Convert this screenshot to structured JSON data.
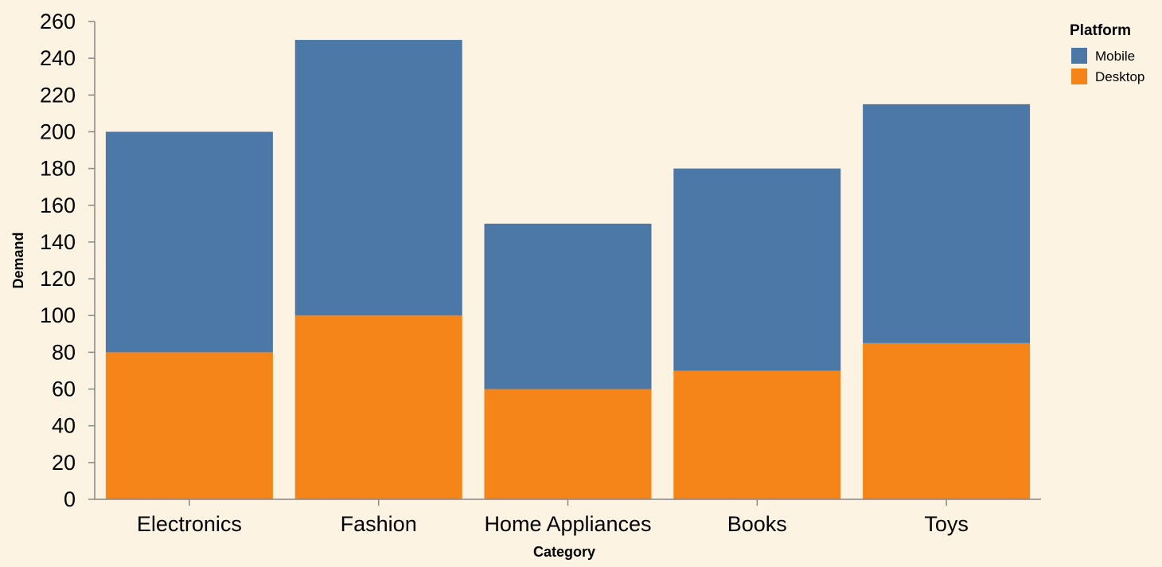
{
  "chart_data": {
    "type": "bar",
    "stacked": true,
    "categories": [
      "Electronics",
      "Fashion",
      "Home Appliances",
      "Books",
      "Toys"
    ],
    "series": [
      {
        "name": "Desktop",
        "values": [
          80,
          100,
          60,
          70,
          85
        ]
      },
      {
        "name": "Mobile",
        "values": [
          120,
          150,
          90,
          110,
          130
        ]
      }
    ],
    "xlabel": "Category",
    "ylabel": "Demand",
    "ylim": [
      0,
      260
    ],
    "yticks": [
      0,
      20,
      40,
      60,
      80,
      100,
      120,
      140,
      160,
      180,
      200,
      220,
      240,
      260
    ],
    "grid": false,
    "legend": {
      "title": "Platform",
      "placement": "top-right",
      "entries": [
        "Mobile",
        "Desktop"
      ]
    },
    "colors": {
      "Mobile": "#4c78a8",
      "Desktop": "#f58518"
    }
  }
}
